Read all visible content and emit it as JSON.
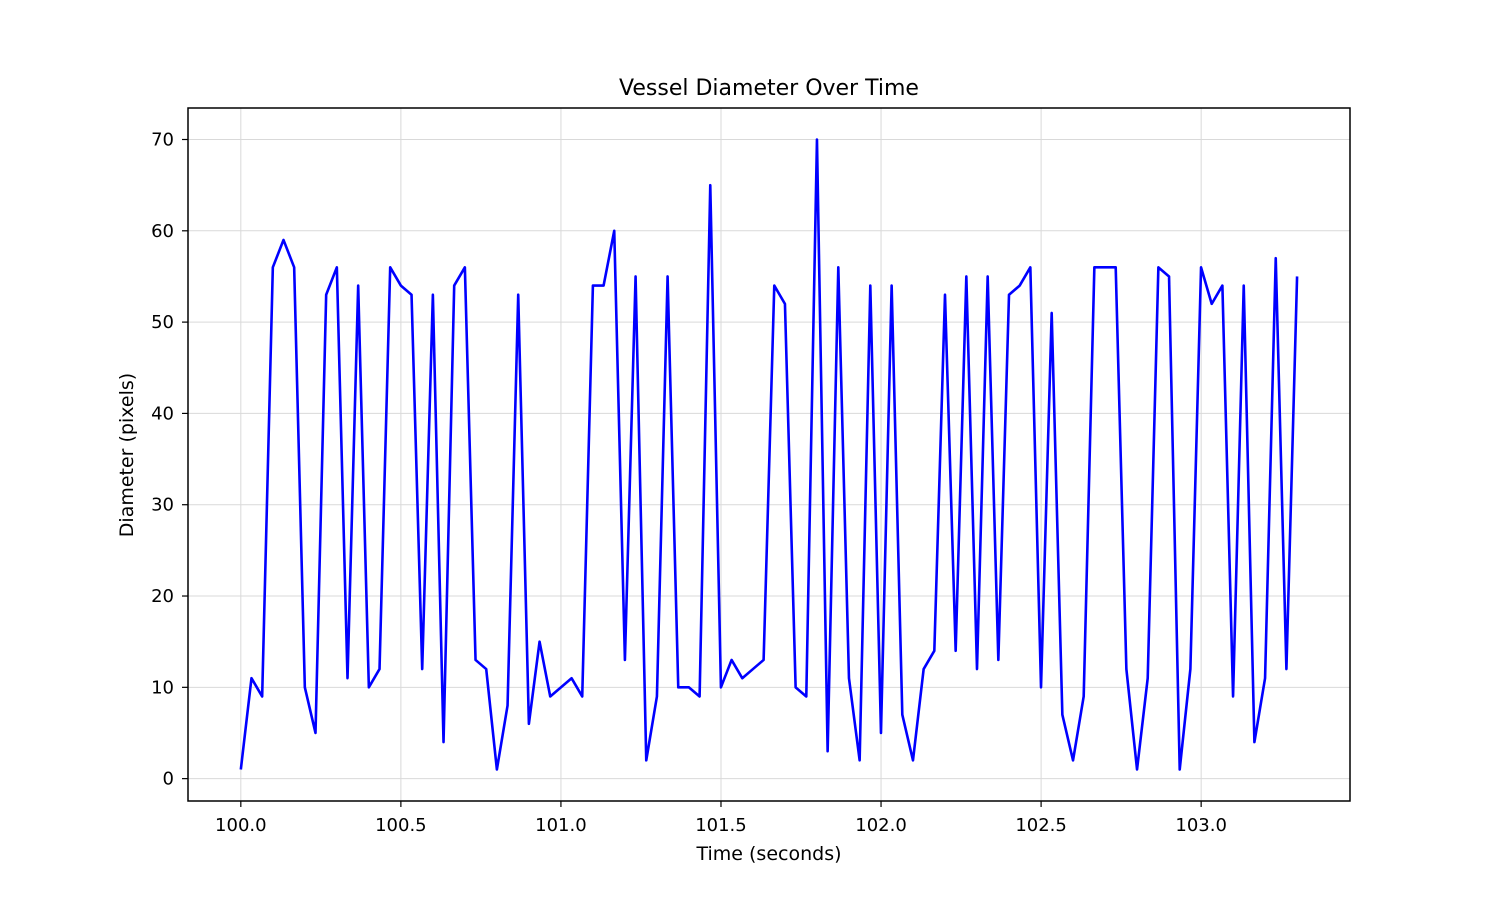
{
  "chart_data": {
    "type": "line",
    "title": "Vessel Diameter Over Time",
    "xlabel": "Time (seconds)",
    "ylabel": "Diameter (pixels)",
    "xlim": [
      99.835,
      103.465
    ],
    "ylim": [
      -2.45,
      73.45
    ],
    "xticks": [
      "100.0",
      "100.5",
      "101.0",
      "101.5",
      "102.0",
      "102.5",
      "103.0"
    ],
    "xtick_values": [
      100.0,
      100.5,
      101.0,
      101.5,
      102.0,
      102.5,
      103.0
    ],
    "yticks": [
      "0",
      "10",
      "20",
      "30",
      "40",
      "50",
      "60",
      "70"
    ],
    "ytick_values": [
      0,
      10,
      20,
      30,
      40,
      50,
      60,
      70
    ],
    "grid": true,
    "line_color": "#0000ff",
    "series": [
      {
        "x_start": 100.0,
        "x_step": 0.03333,
        "values": [
          1,
          11,
          9,
          56,
          59,
          56,
          10,
          5,
          53,
          56,
          11,
          54,
          10,
          12,
          56,
          54,
          53,
          12,
          53,
          4,
          54,
          56,
          13,
          12,
          1,
          8,
          53,
          6,
          15,
          9,
          10,
          11,
          9,
          54,
          54,
          60,
          13,
          55,
          2,
          9,
          55,
          10,
          10,
          9,
          65,
          10,
          13,
          11,
          12,
          13,
          54,
          52,
          10,
          9,
          70,
          3,
          56,
          11,
          2,
          54,
          5,
          54,
          7,
          2,
          12,
          14,
          53,
          14,
          55,
          12,
          55,
          13,
          53,
          54,
          56,
          10,
          51,
          7,
          2,
          9,
          56,
          56,
          56,
          12,
          1,
          11,
          56,
          55,
          1,
          12,
          56,
          52,
          54,
          9,
          54,
          4,
          11,
          57,
          12,
          55
        ]
      }
    ]
  }
}
